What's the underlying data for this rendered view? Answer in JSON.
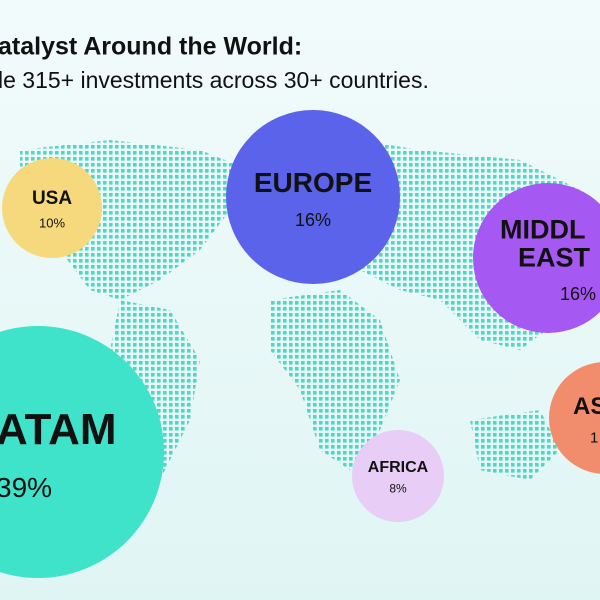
{
  "header": {
    "title": "atalyst Around the World:",
    "subtitle": "le 315+ investments across 30+ countries."
  },
  "regions": [
    {
      "name": [
        "USA"
      ],
      "share": "10%"
    },
    {
      "name": [
        "EUROPE"
      ],
      "share": "16%"
    },
    {
      "name": [
        "MIDDL",
        "EAST"
      ],
      "share": "16%"
    },
    {
      "name": [
        "ATAM"
      ],
      "share": "39%"
    },
    {
      "name": [
        "AFRICA"
      ],
      "share": "8%"
    },
    {
      "name": [
        "AS"
      ],
      "share": "1"
    }
  ]
}
